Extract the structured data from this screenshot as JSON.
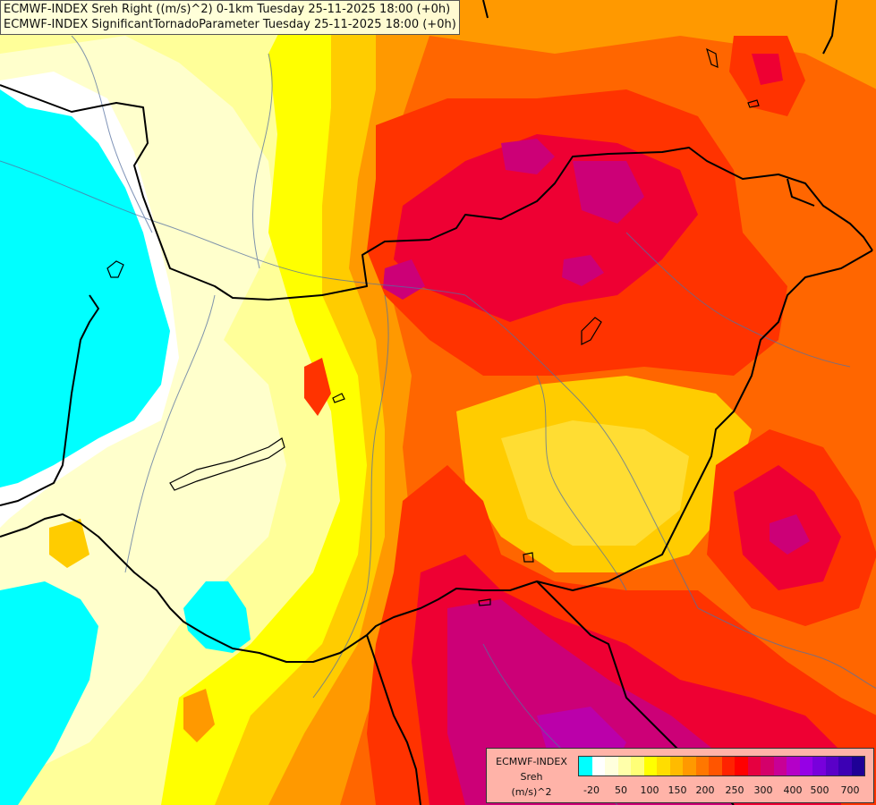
{
  "title": {
    "line1": "ECMWF-INDEX Sreh Right ((m/s)^2) 0-1km Tuesday 25-11-2025 18:00 (+0h)",
    "line2": "ECMWF-INDEX SignificantTornadoParameter Tuesday 25-11-2025 18:00 (+0h)"
  },
  "legend": {
    "line1": "ECMWF-INDEX",
    "line2": "Sreh",
    "line3": "(m/s)^2",
    "colors": [
      "#00ffff",
      "#ffffff",
      "#ffffdd",
      "#ffffaa",
      "#ffff77",
      "#ffff00",
      "#ffdd00",
      "#ffbb00",
      "#ff9900",
      "#ff7700",
      "#ff5500",
      "#ff2200",
      "#ff0000",
      "#e60040",
      "#d4006a",
      "#c80096",
      "#b400c8",
      "#9600e6",
      "#7800dc",
      "#5a00c8",
      "#3c00b4",
      "#1e0096"
    ],
    "ticks": [
      "-20",
      "50",
      "100",
      "150",
      "200",
      "250",
      "300",
      "400",
      "500",
      "700"
    ]
  },
  "map_colors": {
    "cyan": "#00ffff",
    "white": "#ffffff",
    "pale": "#ffffcc",
    "light_yellow": "#ffff99",
    "yellow": "#ffff00",
    "gold": "#ffcc00",
    "orange": "#ff9900",
    "dark_orange": "#ff6600",
    "red": "#ff3300",
    "crimson": "#ee0033",
    "magenta": "#cc0077",
    "purple": "#bb00aa"
  }
}
